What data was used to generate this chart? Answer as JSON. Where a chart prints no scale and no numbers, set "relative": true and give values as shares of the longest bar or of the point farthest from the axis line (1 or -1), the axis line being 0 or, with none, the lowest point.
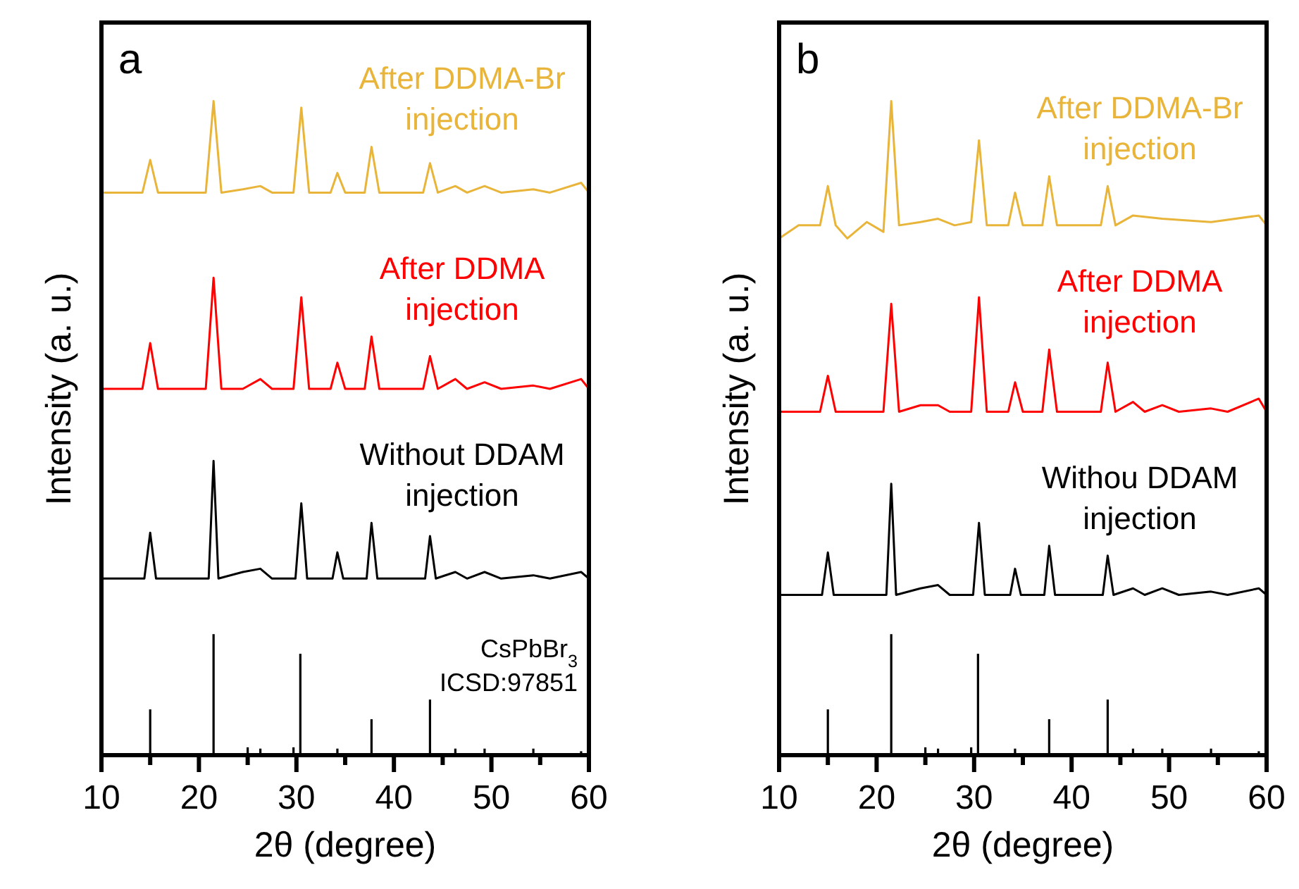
{
  "chart_data": [
    {
      "type": "line",
      "title": "a",
      "xlabel": "2θ (degree)",
      "ylabel": "Intensity (a. u.)",
      "relative": true,
      "xlim": [
        10,
        60
      ],
      "xticks": [
        10,
        {
          "value": 15,
          "label": null
        },
        20,
        {
          "value": 25,
          "label": null
        },
        30,
        {
          "value": 35,
          "label": null
        },
        40,
        {
          "value": 45,
          "label": null
        },
        50,
        {
          "value": 55,
          "label": null
        },
        60
      ],
      "series": [
        {
          "name": "After DDMA-Br injection",
          "color": "#e8b53a",
          "x": [
            10,
            14.2,
            15,
            15.8,
            20.7,
            21.5,
            22.3,
            24.5,
            26.3,
            27.5,
            29.7,
            30.5,
            31.3,
            33.5,
            34.2,
            35,
            37,
            37.7,
            38.5,
            43,
            43.7,
            44.5,
            46.3,
            47.5,
            49.3,
            51,
            54.3,
            56,
            59.2,
            60
          ],
          "values": [
            0.86,
            0.86,
            0.91,
            0.86,
            0.86,
            1.0,
            0.86,
            0.865,
            0.87,
            0.86,
            0.86,
            0.99,
            0.86,
            0.86,
            0.89,
            0.86,
            0.86,
            0.93,
            0.86,
            0.86,
            0.905,
            0.86,
            0.87,
            0.86,
            0.87,
            0.86,
            0.865,
            0.86,
            0.875,
            0.86
          ]
        },
        {
          "name": "After DDMA injection",
          "color": "#ff0000",
          "x": [
            10,
            14.2,
            15,
            15.8,
            20.7,
            21.5,
            22.3,
            24.5,
            26.3,
            27.5,
            29.7,
            30.5,
            31.3,
            33.5,
            34.2,
            35,
            37,
            37.7,
            38.5,
            43,
            43.7,
            44.5,
            46.3,
            47.5,
            49.3,
            51,
            54.3,
            56,
            59.2,
            60
          ],
          "values": [
            0.56,
            0.56,
            0.63,
            0.56,
            0.56,
            0.73,
            0.56,
            0.56,
            0.575,
            0.56,
            0.56,
            0.7,
            0.56,
            0.56,
            0.6,
            0.56,
            0.56,
            0.64,
            0.56,
            0.56,
            0.61,
            0.56,
            0.575,
            0.56,
            0.57,
            0.56,
            0.565,
            0.56,
            0.575,
            0.56
          ]
        },
        {
          "name": "Without DDAM injection",
          "color": "#000000",
          "x": [
            10,
            14.4,
            15,
            15.6,
            21,
            21.5,
            22,
            24.5,
            26.3,
            27.5,
            29.9,
            30.5,
            31.1,
            33.7,
            34.2,
            34.8,
            37.2,
            37.7,
            38.3,
            43.2,
            43.7,
            44.3,
            46.3,
            47.5,
            49.3,
            51,
            54.3,
            56,
            59.2,
            60
          ],
          "values": [
            0.27,
            0.27,
            0.34,
            0.27,
            0.27,
            0.45,
            0.27,
            0.28,
            0.285,
            0.27,
            0.27,
            0.385,
            0.27,
            0.27,
            0.31,
            0.27,
            0.27,
            0.355,
            0.27,
            0.27,
            0.335,
            0.27,
            0.28,
            0.27,
            0.28,
            0.27,
            0.275,
            0.27,
            0.28,
            0.27
          ]
        },
        {
          "name": "CsPbBr$_{3}$ ICSD:97851",
          "color": "#000000",
          "type": "bar",
          "x": [
            15,
            21.5,
            25,
            26.3,
            29.7,
            30.4,
            34.2,
            37.7,
            43.7,
            46.3,
            49.3,
            54.3,
            59.2
          ],
          "values": [
            0.07,
            0.185,
            0.012,
            0.01,
            0.012,
            0.155,
            0.01,
            0.055,
            0.085,
            0.01,
            0.01,
            0.01,
            0.006
          ]
        }
      ]
    },
    {
      "type": "line",
      "title": "b",
      "xlabel": "2θ (degree)",
      "ylabel": "Intensity (a. u.)",
      "relative": true,
      "xlim": [
        10,
        60
      ],
      "xticks": [
        10,
        {
          "value": 15,
          "label": null
        },
        20,
        {
          "value": 25,
          "label": null
        },
        30,
        {
          "value": 35,
          "label": null
        },
        40,
        {
          "value": 45,
          "label": null
        },
        50,
        {
          "value": 55,
          "label": null
        },
        60
      ],
      "series": [
        {
          "name": "After DDMA-Br injection",
          "color": "#e8b53a",
          "x": [
            10,
            12,
            14.2,
            15,
            15.8,
            17,
            19,
            20.7,
            21.5,
            22.3,
            24.5,
            26.3,
            28,
            29.7,
            30.5,
            31.3,
            33.5,
            34.2,
            35,
            37,
            37.7,
            38.5,
            43,
            43.7,
            44.5,
            46.3,
            49.3,
            54.3,
            59.2,
            60
          ],
          "values": [
            0.79,
            0.81,
            0.81,
            0.87,
            0.81,
            0.79,
            0.815,
            0.8,
            1.0,
            0.81,
            0.815,
            0.82,
            0.81,
            0.815,
            0.94,
            0.81,
            0.81,
            0.86,
            0.81,
            0.81,
            0.885,
            0.81,
            0.81,
            0.87,
            0.81,
            0.825,
            0.82,
            0.815,
            0.825,
            0.81
          ]
        },
        {
          "name": "After DDMA injection",
          "color": "#ff0000",
          "x": [
            10,
            14.2,
            15,
            15.8,
            20.7,
            21.5,
            22.3,
            24.5,
            26.3,
            27.5,
            29.7,
            30.5,
            31.3,
            33.5,
            34.2,
            35,
            37,
            37.7,
            38.5,
            43,
            43.7,
            44.5,
            46.3,
            47.5,
            49.3,
            51,
            54.3,
            56,
            59.2,
            60
          ],
          "values": [
            0.525,
            0.525,
            0.58,
            0.525,
            0.525,
            0.69,
            0.525,
            0.535,
            0.535,
            0.525,
            0.525,
            0.7,
            0.525,
            0.525,
            0.57,
            0.525,
            0.525,
            0.62,
            0.525,
            0.525,
            0.6,
            0.525,
            0.54,
            0.525,
            0.535,
            0.525,
            0.53,
            0.525,
            0.545,
            0.525
          ]
        },
        {
          "name": "Withou DDAM injection",
          "color": "#000000",
          "x": [
            10,
            14.4,
            15,
            15.6,
            21,
            21.5,
            22,
            24.5,
            26.3,
            27.5,
            29.9,
            30.5,
            31.1,
            33.7,
            34.2,
            34.8,
            37.2,
            37.7,
            38.3,
            43.2,
            43.7,
            44.3,
            46.3,
            47.5,
            49.3,
            51,
            54.3,
            56,
            59.2,
            60
          ],
          "values": [
            0.245,
            0.245,
            0.31,
            0.245,
            0.245,
            0.415,
            0.245,
            0.255,
            0.26,
            0.245,
            0.245,
            0.355,
            0.245,
            0.245,
            0.285,
            0.245,
            0.245,
            0.32,
            0.245,
            0.245,
            0.305,
            0.245,
            0.255,
            0.245,
            0.255,
            0.245,
            0.25,
            0.245,
            0.255,
            0.245
          ]
        },
        {
          "color": "#000000",
          "type": "bar",
          "x": [
            15,
            21.5,
            25,
            26.3,
            29.7,
            30.4,
            34.2,
            37.7,
            43.7,
            46.3,
            49.3,
            54.3,
            59.2
          ],
          "values": [
            0.07,
            0.185,
            0.012,
            0.01,
            0.012,
            0.155,
            0.01,
            0.055,
            0.085,
            0.01,
            0.01,
            0.01,
            0.006
          ]
        }
      ]
    }
  ]
}
